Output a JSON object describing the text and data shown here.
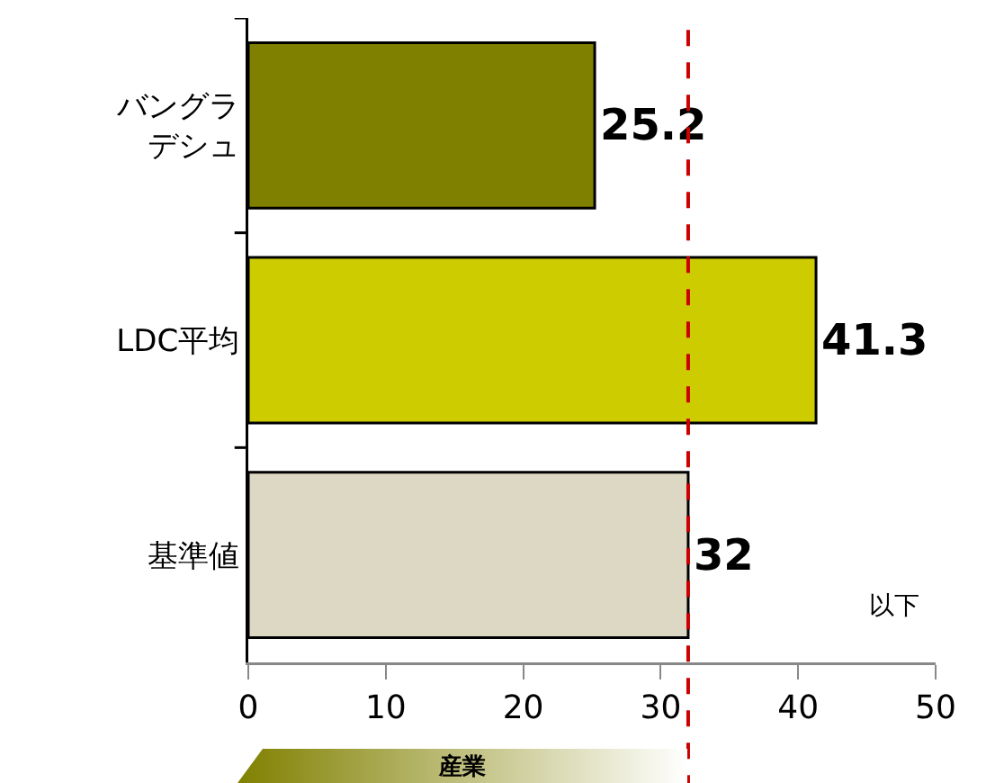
{
  "chart_data": {
    "type": "bar",
    "orientation": "horizontal",
    "categories": [
      "バングラデシュ",
      "LDC平均",
      "基準値"
    ],
    "values": [
      25.2,
      41.3,
      32
    ],
    "colors": [
      "#808000",
      "#cccc00",
      "#ddd8c4"
    ],
    "xlim": [
      0,
      50
    ],
    "xticks": [
      0,
      10,
      20,
      30,
      40,
      50
    ],
    "grid": false,
    "data_labels": true,
    "ref_lines": [
      {
        "axis": "x",
        "value": 32,
        "color": "#cc0000",
        "line_style": "dashed"
      }
    ],
    "annotations": [
      "以下",
      "産業"
    ]
  }
}
